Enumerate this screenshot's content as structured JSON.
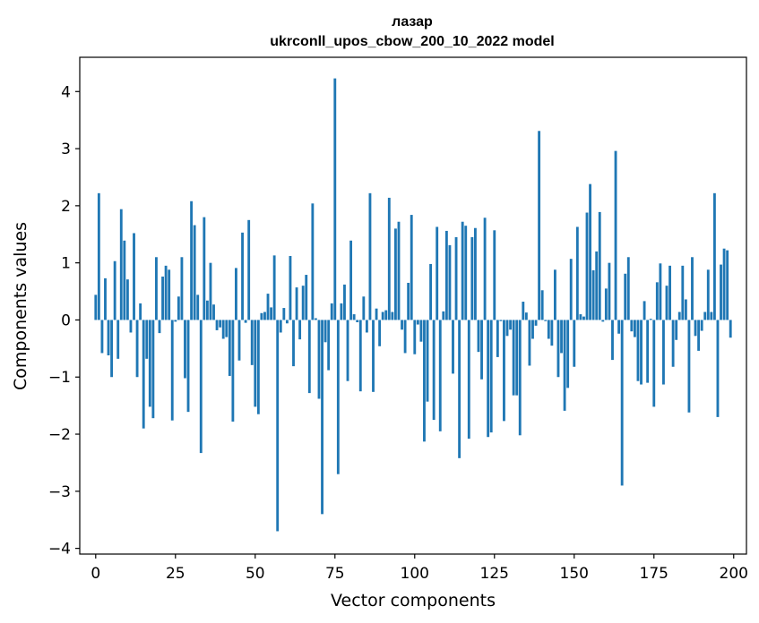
{
  "chart_data": {
    "type": "bar",
    "title": "лазар",
    "subtitle": "ukrconll_upos_cbow_200_10_2022 model",
    "xlabel": "Vector components",
    "ylabel": "Components values",
    "xlim": [
      -5,
      204
    ],
    "ylim": [
      -4.1,
      4.6
    ],
    "xticks": [
      0,
      25,
      50,
      75,
      100,
      125,
      150,
      175,
      200
    ],
    "yticks": [
      -4,
      -3,
      -2,
      -1,
      0,
      1,
      2,
      3,
      4
    ],
    "xtick_labels": [
      "0",
      "25",
      "50",
      "75",
      "100",
      "125",
      "150",
      "175",
      "200"
    ],
    "ytick_labels": [
      "−4",
      "−3",
      "−2",
      "−1",
      "0",
      "1",
      "2",
      "3",
      "4"
    ],
    "grid": false,
    "legend": "none",
    "bar_color": "#1f77b4",
    "x": [
      0,
      1,
      2,
      3,
      4,
      5,
      6,
      7,
      8,
      9,
      10,
      11,
      12,
      13,
      14,
      15,
      16,
      17,
      18,
      19,
      20,
      21,
      22,
      23,
      24,
      25,
      26,
      27,
      28,
      29,
      30,
      31,
      32,
      33,
      34,
      35,
      36,
      37,
      38,
      39,
      40,
      41,
      42,
      43,
      44,
      45,
      46,
      47,
      48,
      49,
      50,
      51,
      52,
      53,
      54,
      55,
      56,
      57,
      58,
      59,
      60,
      61,
      62,
      63,
      64,
      65,
      66,
      67,
      68,
      69,
      70,
      71,
      72,
      73,
      74,
      75,
      76,
      77,
      78,
      79,
      80,
      81,
      82,
      83,
      84,
      85,
      86,
      87,
      88,
      89,
      90,
      91,
      92,
      93,
      94,
      95,
      96,
      97,
      98,
      99,
      100,
      101,
      102,
      103,
      104,
      105,
      106,
      107,
      108,
      109,
      110,
      111,
      112,
      113,
      114,
      115,
      116,
      117,
      118,
      119,
      120,
      121,
      122,
      123,
      124,
      125,
      126,
      127,
      128,
      129,
      130,
      131,
      132,
      133,
      134,
      135,
      136,
      137,
      138,
      139,
      140,
      141,
      142,
      143,
      144,
      145,
      146,
      147,
      148,
      149,
      150,
      151,
      152,
      153,
      154,
      155,
      156,
      157,
      158,
      159,
      160,
      161,
      162,
      163,
      164,
      165,
      166,
      167,
      168,
      169,
      170,
      171,
      172,
      173,
      174,
      175,
      176,
      177,
      178,
      179,
      180,
      181,
      182,
      183,
      184,
      185,
      186,
      187,
      188,
      189,
      190,
      191,
      192,
      193,
      194,
      195,
      196,
      197,
      198,
      199
    ],
    "values": [
      0.44,
      2.22,
      -0.58,
      0.73,
      -0.62,
      -1.0,
      1.03,
      -0.68,
      1.94,
      1.39,
      0.71,
      -0.22,
      1.52,
      -1.0,
      0.29,
      -1.9,
      -0.68,
      -1.52,
      -1.72,
      1.1,
      -0.23,
      0.76,
      0.95,
      0.88,
      -1.76,
      -0.03,
      0.41,
      1.1,
      -1.02,
      -1.61,
      2.08,
      1.66,
      0.44,
      -2.33,
      1.8,
      0.34,
      1.0,
      0.27,
      -0.18,
      -0.13,
      -0.33,
      -0.3,
      -0.98,
      -1.78,
      0.91,
      -0.71,
      1.53,
      -0.05,
      1.75,
      -0.79,
      -1.52,
      -1.65,
      0.12,
      0.14,
      0.46,
      0.22,
      1.13,
      -3.7,
      -0.22,
      0.21,
      -0.06,
      1.12,
      -0.81,
      0.57,
      -0.34,
      0.6,
      0.79,
      -1.28,
      2.04,
      0.03,
      -1.38,
      -3.4,
      -0.39,
      -0.88,
      0.29,
      4.23,
      -2.7,
      0.29,
      0.62,
      -1.07,
      1.39,
      0.1,
      -0.04,
      -1.25,
      0.41,
      -0.22,
      2.22,
      -1.26,
      0.2,
      -0.46,
      0.14,
      0.17,
      2.14,
      0.14,
      1.6,
      1.72,
      -0.17,
      -0.58,
      0.65,
      1.84,
      -0.6,
      -0.08,
      -0.38,
      -2.13,
      -1.43,
      0.98,
      -1.75,
      1.63,
      -1.95,
      0.15,
      1.56,
      1.31,
      -0.94,
      1.45,
      -2.42,
      1.72,
      1.65,
      -2.08,
      1.45,
      1.61,
      -0.56,
      -1.04,
      1.79,
      -2.05,
      -1.97,
      1.57,
      -0.65,
      -0.02,
      -1.77,
      -0.28,
      -0.17,
      -1.32,
      -1.32,
      -2.02,
      0.32,
      0.13,
      -0.8,
      -0.33,
      -0.1,
      3.31,
      0.52,
      -0.02,
      -0.33,
      -0.45,
      0.88,
      -1.0,
      -0.58,
      -1.59,
      -1.19,
      1.07,
      -0.82,
      1.63,
      0.1,
      0.06,
      1.88,
      2.38,
      0.87,
      1.2,
      1.89,
      -0.03,
      0.55,
      1.0,
      -0.7,
      2.96,
      -0.24,
      -2.9,
      0.81,
      1.1,
      -0.2,
      -0.3,
      -1.07,
      -1.13,
      0.33,
      -1.1,
      0.02,
      -1.52,
      0.66,
      0.99,
      -1.13,
      0.6,
      0.95,
      -0.82,
      -0.35,
      0.14,
      0.95,
      0.36,
      -1.62,
      1.1,
      -0.28,
      -0.54,
      -0.19,
      0.14,
      0.88,
      0.14,
      2.22,
      -1.7,
      0.97,
      1.25,
      1.22,
      -0.31
    ]
  }
}
